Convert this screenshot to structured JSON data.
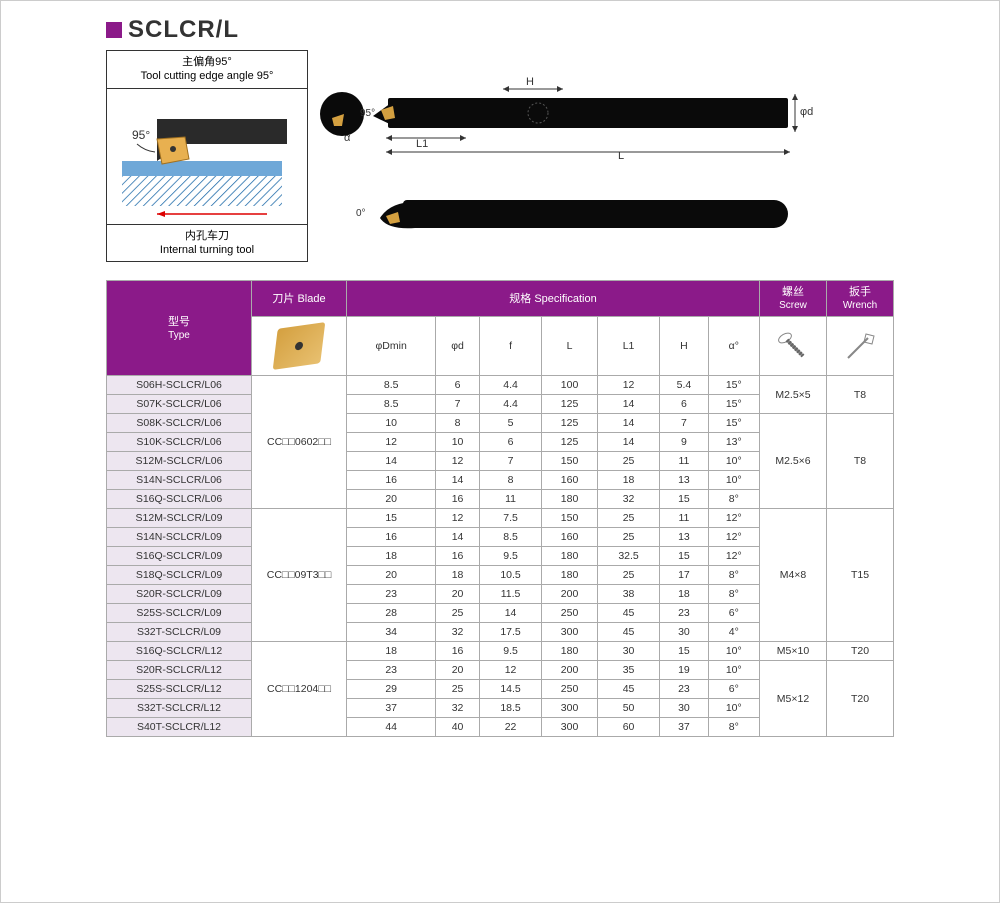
{
  "title": "SCLCR/L",
  "angle_box": {
    "header_cn": "主偏角95°",
    "header_en": "Tool cutting edge angle 95°",
    "footer_cn": "内孔车刀",
    "footer_en": "Internal turning tool",
    "angle_text": "95°",
    "colors": {
      "insert": "#e8b050",
      "work": "#6fa8d8",
      "shank": "#2a2a2a",
      "hatch": "#1a68a8"
    }
  },
  "diagram": {
    "labels": {
      "H": "H",
      "phi_d": "φd",
      "L": "L",
      "L1": "L1",
      "alpha": "α",
      "ninety_five": "95°",
      "zero": "0°"
    },
    "bar_color": "#0a0a0a"
  },
  "table": {
    "headers": {
      "type": {
        "cn": "型号",
        "en": "Type"
      },
      "blade": {
        "cn": "刀片",
        "en": "Blade"
      },
      "spec": {
        "cn": "规格",
        "en": "Specification"
      },
      "screw": {
        "cn": "螺丝",
        "en": "Screw"
      },
      "wrench": {
        "cn": "扳手",
        "en": "Wrench"
      },
      "cols": [
        "φDmin",
        "φd",
        "f",
        "L",
        "L1",
        "H",
        "α°"
      ]
    },
    "groups": [
      {
        "blade": "CC□□0602□□",
        "screw_groups": [
          {
            "screw": "M2.5×5",
            "wrench": "T8",
            "rows": [
              {
                "type": "S06H-SCLCR/L06",
                "vals": [
                  "8.5",
                  "6",
                  "4.4",
                  "100",
                  "12",
                  "5.4",
                  "15°"
                ]
              },
              {
                "type": "S07K-SCLCR/L06",
                "vals": [
                  "8.5",
                  "7",
                  "4.4",
                  "125",
                  "14",
                  "6",
                  "15°"
                ]
              }
            ]
          },
          {
            "screw": "M2.5×6",
            "wrench": "T8",
            "rows": [
              {
                "type": "S08K-SCLCR/L06",
                "vals": [
                  "10",
                  "8",
                  "5",
                  "125",
                  "14",
                  "7",
                  "15°"
                ]
              },
              {
                "type": "S10K-SCLCR/L06",
                "vals": [
                  "12",
                  "10",
                  "6",
                  "125",
                  "14",
                  "9",
                  "13°"
                ]
              },
              {
                "type": "S12M-SCLCR/L06",
                "vals": [
                  "14",
                  "12",
                  "7",
                  "150",
                  "25",
                  "11",
                  "10°"
                ]
              },
              {
                "type": "S14N-SCLCR/L06",
                "vals": [
                  "16",
                  "14",
                  "8",
                  "160",
                  "18",
                  "13",
                  "10°"
                ]
              },
              {
                "type": "S16Q-SCLCR/L06",
                "vals": [
                  "20",
                  "16",
                  "11",
                  "180",
                  "32",
                  "15",
                  "8°"
                ]
              }
            ]
          }
        ]
      },
      {
        "blade": "CC□□09T3□□",
        "screw_groups": [
          {
            "screw": "M4×8",
            "wrench": "T15",
            "rows": [
              {
                "type": "S12M-SCLCR/L09",
                "vals": [
                  "15",
                  "12",
                  "7.5",
                  "150",
                  "25",
                  "11",
                  "12°"
                ]
              },
              {
                "type": "S14N-SCLCR/L09",
                "vals": [
                  "16",
                  "14",
                  "8.5",
                  "160",
                  "25",
                  "13",
                  "12°"
                ]
              },
              {
                "type": "S16Q-SCLCR/L09",
                "vals": [
                  "18",
                  "16",
                  "9.5",
                  "180",
                  "32.5",
                  "15",
                  "12°"
                ]
              },
              {
                "type": "S18Q-SCLCR/L09",
                "vals": [
                  "20",
                  "18",
                  "10.5",
                  "180",
                  "25",
                  "17",
                  "8°"
                ]
              },
              {
                "type": "S20R-SCLCR/L09",
                "vals": [
                  "23",
                  "20",
                  "11.5",
                  "200",
                  "38",
                  "18",
                  "8°"
                ]
              },
              {
                "type": "S25S-SCLCR/L09",
                "vals": [
                  "28",
                  "25",
                  "14",
                  "250",
                  "45",
                  "23",
                  "6°"
                ]
              },
              {
                "type": "S32T-SCLCR/L09",
                "vals": [
                  "34",
                  "32",
                  "17.5",
                  "300",
                  "45",
                  "30",
                  "4°"
                ]
              }
            ]
          }
        ]
      },
      {
        "blade": "CC□□1204□□",
        "screw_groups": [
          {
            "screw": "M5×10",
            "wrench": "T20",
            "rows": [
              {
                "type": "S16Q-SCLCR/L12",
                "vals": [
                  "18",
                  "16",
                  "9.5",
                  "180",
                  "30",
                  "15",
                  "10°"
                ]
              }
            ]
          },
          {
            "screw": "M5×12",
            "wrench": "T20",
            "rows": [
              {
                "type": "S20R-SCLCR/L12",
                "vals": [
                  "23",
                  "20",
                  "12",
                  "200",
                  "35",
                  "19",
                  "10°"
                ]
              },
              {
                "type": "S25S-SCLCR/L12",
                "vals": [
                  "29",
                  "25",
                  "14.5",
                  "250",
                  "45",
                  "23",
                  "6°"
                ]
              },
              {
                "type": "S32T-SCLCR/L12",
                "vals": [
                  "37",
                  "32",
                  "18.5",
                  "300",
                  "50",
                  "30",
                  "10°"
                ]
              },
              {
                "type": "S40T-SCLCR/L12",
                "vals": [
                  "44",
                  "40",
                  "22",
                  "300",
                  "60",
                  "37",
                  "8°"
                ]
              }
            ]
          }
        ]
      }
    ]
  },
  "colors": {
    "purple": "#8b1a89",
    "type_bg": "#ede6f0",
    "border": "#aaaaaa"
  }
}
